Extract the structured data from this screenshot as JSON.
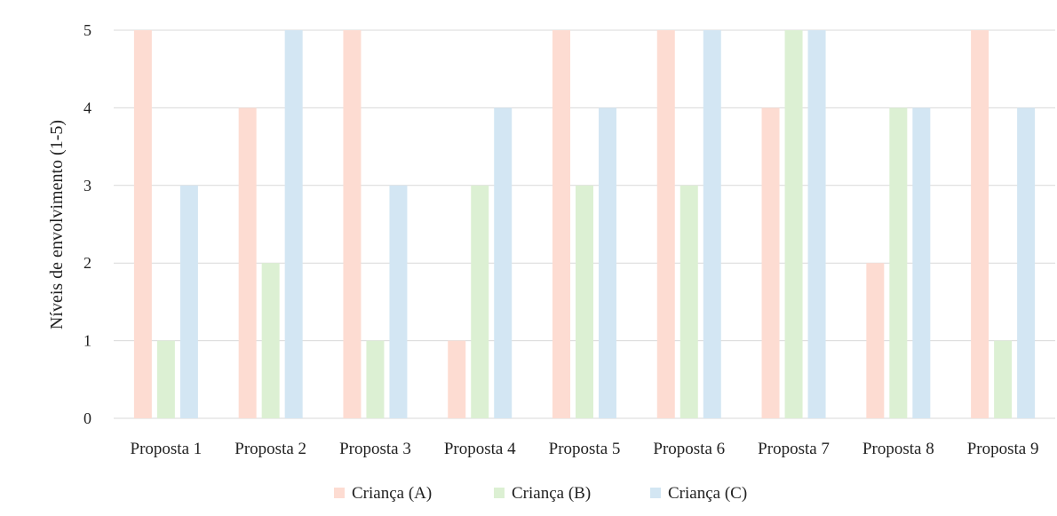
{
  "chart_data": {
    "type": "bar",
    "title": "",
    "xlabel": "",
    "ylabel": "Níveis de envolvimento (1-5)",
    "ylim": [
      0,
      5
    ],
    "yticks": [
      0,
      1,
      2,
      3,
      4,
      5
    ],
    "grid": true,
    "legend_position": "bottom",
    "categories": [
      "Proposta 1",
      "Proposta 2",
      "Proposta 3",
      "Proposta 4",
      "Proposta 5",
      "Proposta 6",
      "Proposta 7",
      "Proposta 8",
      "Proposta 9"
    ],
    "series": [
      {
        "name": "Criança (A)",
        "color": "#fddcd2",
        "values": [
          5,
          4,
          5,
          1,
          5,
          5,
          4,
          2,
          5
        ]
      },
      {
        "name": "Criança (B)",
        "color": "#dcf0d3",
        "values": [
          1,
          2,
          1,
          3,
          3,
          3,
          5,
          4,
          1
        ]
      },
      {
        "name": "Criança (C)",
        "color": "#d3e6f3",
        "values": [
          3,
          5,
          3,
          4,
          4,
          5,
          5,
          4,
          4
        ]
      }
    ]
  }
}
